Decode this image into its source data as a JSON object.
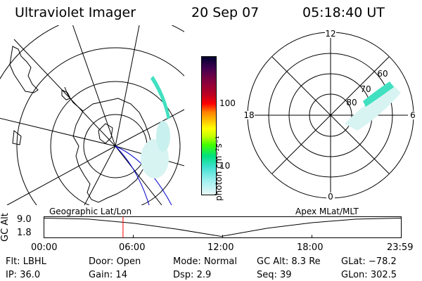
{
  "header": {
    "title": "Ultraviolet Imager",
    "date": "20 Sep 07",
    "time": "05:18:40 UT"
  },
  "colorbar": {
    "unit_label": "photon cm⁻²s⁻¹",
    "ticks": [
      "100",
      "10"
    ],
    "colors": [
      "#000030",
      "#400050",
      "#800040",
      "#c00020",
      "#ff0000",
      "#ff8000",
      "#ffc000",
      "#ffff00",
      "#c0ff00",
      "#40ff00",
      "#00e080",
      "#40e0d0",
      "#a0f0f0",
      "#e8f8f8"
    ]
  },
  "left_map": {
    "projection": "Geographic",
    "aurora_color": "#40e0c0",
    "land_color": "#000000",
    "grid_color": "#000000",
    "track_color": "#0000cc"
  },
  "right_map": {
    "clock_labels": {
      "top": "12",
      "left": "18",
      "right": "6",
      "bottom": "0"
    },
    "lat_labels": [
      "60",
      "70",
      "80"
    ],
    "aurora_color": "#40e0c0"
  },
  "altitude_plot": {
    "ylabel": "GC Alt",
    "yticks": [
      "9.0",
      "1.8"
    ],
    "left_label": "Geographic Lat/Lon",
    "right_label": "Apex MLat/MLT",
    "xticks": [
      "00:00",
      "06:00",
      "12:00",
      "18:00",
      "23:59"
    ],
    "marker_time": "05:18:40",
    "marker_color": "#ff0000",
    "series": [
      {
        "time_h": 0.0,
        "alt_re": 9.0
      },
      {
        "time_h": 3.0,
        "alt_re": 8.6
      },
      {
        "time_h": 6.0,
        "alt_re": 7.0
      },
      {
        "time_h": 9.0,
        "alt_re": 4.6
      },
      {
        "time_h": 11.9,
        "alt_re": 1.8
      },
      {
        "time_h": 15.0,
        "alt_re": 5.0
      },
      {
        "time_h": 18.0,
        "alt_re": 7.2
      },
      {
        "time_h": 21.0,
        "alt_re": 8.6
      },
      {
        "time_h": 23.98,
        "alt_re": 9.0
      }
    ]
  },
  "status": {
    "flt_label": "Flt:",
    "flt_value": "LBHL",
    "ip_label": "IP:",
    "ip_value": "36.0",
    "door_label": "Door:",
    "door_value": "Open",
    "gain_label": "Gain:",
    "gain_value": "14",
    "mode_label": "Mode:",
    "mode_value": "Normal",
    "dsp_label": "Dsp:",
    "dsp_value": "2.9",
    "gcalt_label": "GC Alt:",
    "gcalt_value": "8.3 Re",
    "seq_label": "Seq:",
    "seq_value": "39",
    "glat_label": "GLat:",
    "glat_value": "−78.2",
    "glon_label": "GLon:",
    "glon_value": "302.5"
  }
}
